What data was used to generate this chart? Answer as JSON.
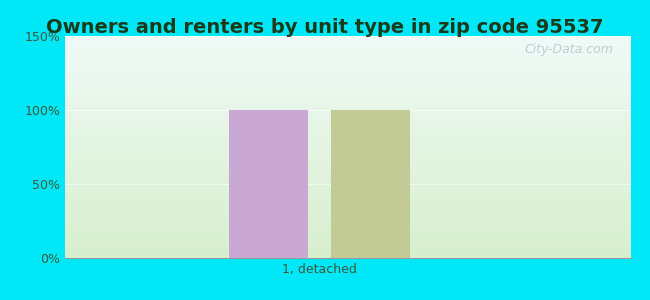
{
  "title": "Owners and renters by unit type in zip code 95537",
  "categories": [
    "1, detached"
  ],
  "owner_values": [
    100
  ],
  "renter_values": [
    100
  ],
  "owner_color": "#c9a8d4",
  "renter_color": "#c2ca96",
  "ylim": [
    0,
    150
  ],
  "yticks": [
    0,
    50,
    100,
    150
  ],
  "yticklabels": [
    "0%",
    "50%",
    "100%",
    "150%"
  ],
  "bg_top": "#f0faf8",
  "bg_bottom": "#d8efce",
  "fig_bg": "#00e8f8",
  "bar_width": 0.28,
  "watermark": "City-Data.com",
  "title_fontsize": 14,
  "tick_fontsize": 9,
  "label_color": "#3a5a3a"
}
